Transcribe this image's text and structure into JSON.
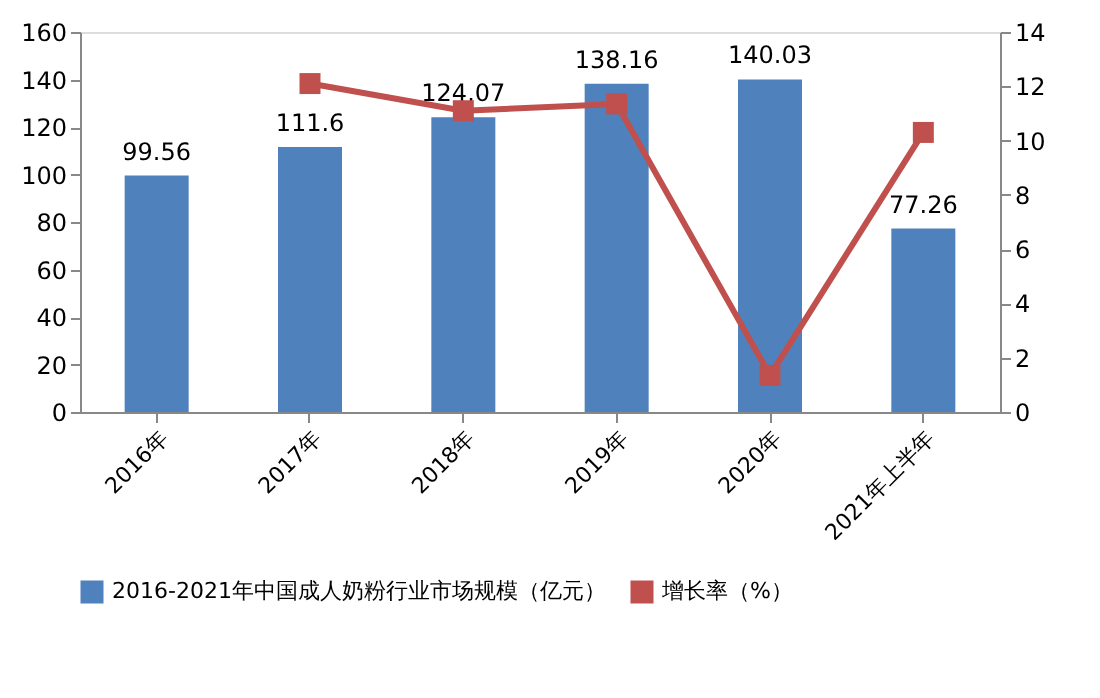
{
  "chart_data": {
    "type": "bar",
    "categories": [
      "2016年",
      "2017年",
      "2018年",
      "2019年",
      "2020年",
      "2021年上半年"
    ],
    "series": [
      {
        "name": "2016-2021年中国成人奶粉行业市场规模（亿元）",
        "color": "#4f81bd",
        "values": [
          99.56,
          111.6,
          124.07,
          138.16,
          140.03,
          77.26
        ],
        "data_labels": true
      },
      {
        "name": "增长率（%）",
        "type": "line",
        "axis": "y2",
        "color": "#c0504d",
        "marker": "square",
        "values": [
          null,
          12.1,
          11.1,
          11.35,
          1.35,
          10.3
        ]
      }
    ],
    "ylim": [
      0,
      160
    ],
    "yticks": [
      0,
      20,
      40,
      60,
      80,
      100,
      120,
      140,
      160
    ],
    "y2lim": [
      0,
      14
    ],
    "y2ticks": [
      0,
      2,
      4,
      6,
      8,
      10,
      12,
      14
    ],
    "grid": false,
    "legend": "bottom"
  }
}
